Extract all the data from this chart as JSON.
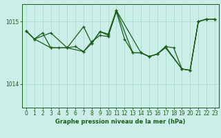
{
  "title": "Graphe pression niveau de la mer (hPa)",
  "bg_color": "#cceee8",
  "grid_color": "#aaddcc",
  "line_color": "#1a5c1a",
  "xlim": [
    -0.5,
    23.5
  ],
  "ylim": [
    1013.62,
    1015.28
  ],
  "yticks": [
    1014,
    1015
  ],
  "xticks": [
    0,
    1,
    2,
    3,
    4,
    5,
    6,
    7,
    8,
    9,
    10,
    11,
    12,
    13,
    14,
    15,
    16,
    17,
    18,
    19,
    20,
    21,
    22,
    23
  ],
  "s1_x": [
    0,
    1,
    2,
    3,
    4,
    5,
    6,
    7,
    8,
    9,
    10,
    11,
    12,
    13,
    14,
    15,
    16,
    17,
    18,
    19,
    20,
    21,
    22,
    23
  ],
  "s1_y": [
    1014.85,
    1014.72,
    1014.82,
    1014.58,
    1014.58,
    1014.58,
    1014.6,
    1014.52,
    1014.68,
    1014.78,
    1014.76,
    1015.16,
    1014.72,
    1014.5,
    1014.5,
    1014.44,
    1014.48,
    1014.6,
    1014.58,
    1014.24,
    1014.22,
    1015.0,
    1015.04,
    1015.04
  ],
  "s2_x": [
    0,
    1,
    3,
    5,
    7,
    8,
    9,
    10,
    11,
    13,
    14,
    15,
    16,
    17,
    19,
    20,
    21,
    22,
    23
  ],
  "s2_y": [
    1014.85,
    1014.72,
    1014.82,
    1014.58,
    1014.92,
    1014.65,
    1014.84,
    1014.8,
    1015.18,
    1014.5,
    1014.5,
    1014.44,
    1014.48,
    1014.6,
    1014.24,
    1014.22,
    1015.0,
    1015.04,
    1015.04
  ],
  "s3_x": [
    0,
    1,
    3,
    5,
    7,
    8,
    9,
    10,
    11,
    14,
    15,
    16,
    17,
    19,
    20,
    21,
    22,
    23
  ],
  "s3_y": [
    1014.85,
    1014.72,
    1014.58,
    1014.58,
    1014.52,
    1014.65,
    1014.84,
    1014.78,
    1015.18,
    1014.5,
    1014.44,
    1014.48,
    1014.58,
    1014.24,
    1014.22,
    1015.0,
    1015.04,
    1015.04
  ],
  "lw": 0.9,
  "ms": 2.2,
  "tick_labelsize": 5.5,
  "xlabel_fontsize": 6.0
}
